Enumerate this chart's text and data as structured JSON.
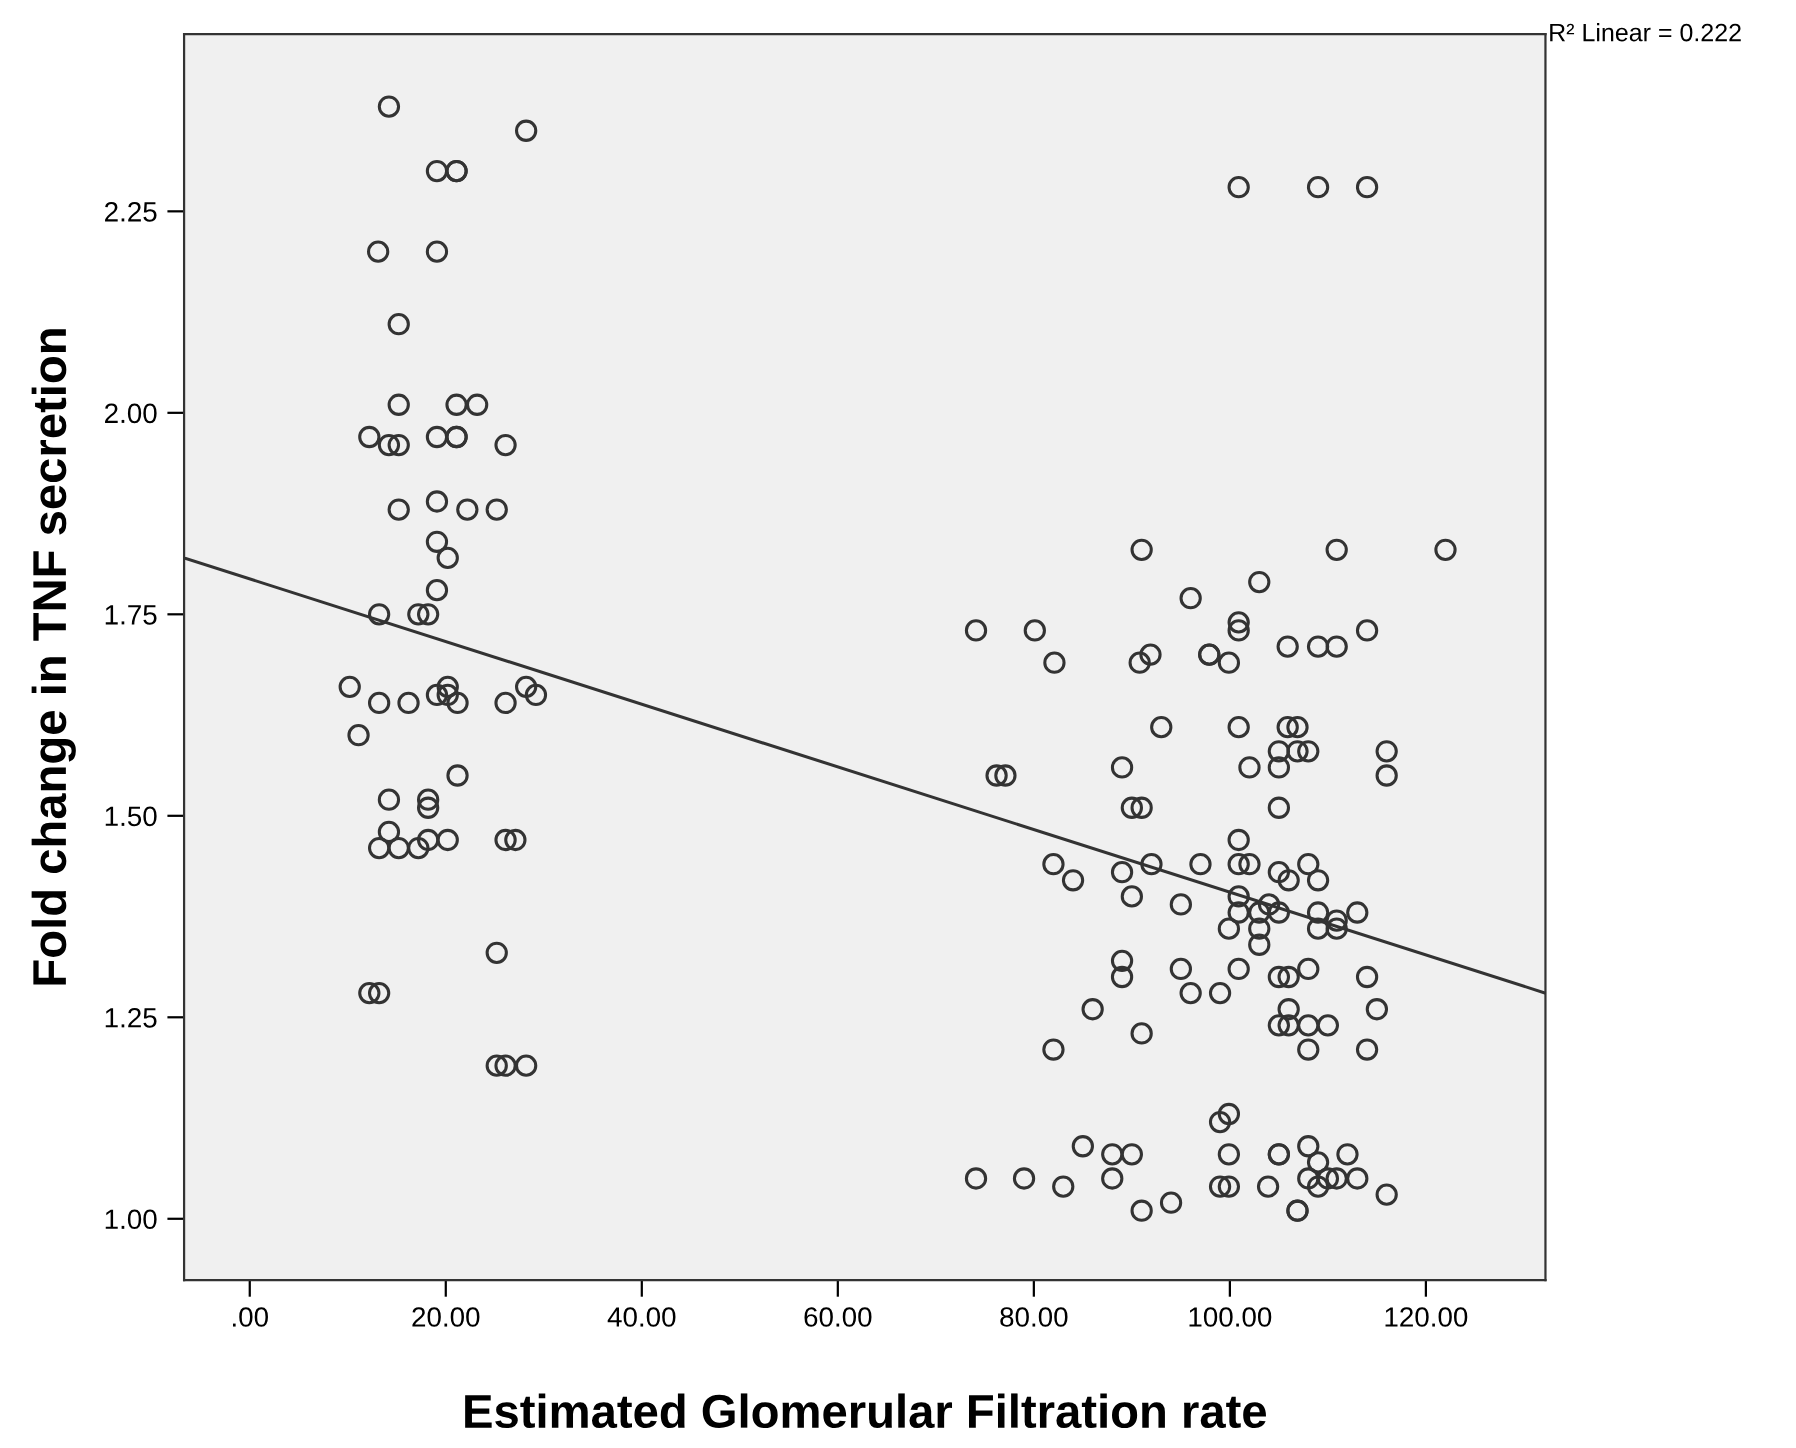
{
  "chart_data": {
    "type": "scatter",
    "xlabel": "Estimated Glomerular Filtration rate",
    "ylabel": "Fold change in TNF secretion",
    "annotations": [
      "R² Linear = 0.222"
    ],
    "xlim": [
      -6.7,
      132.2
    ],
    "ylim": [
      0.924,
      2.47
    ],
    "xticks": [
      {
        "value": 0,
        "label": ".00"
      },
      {
        "value": 20,
        "label": "20.00"
      },
      {
        "value": 40,
        "label": "40.00"
      },
      {
        "value": 60,
        "label": "60.00"
      },
      {
        "value": 80,
        "label": "80.00"
      },
      {
        "value": 100,
        "label": "100.00"
      },
      {
        "value": 120,
        "label": "120.00"
      }
    ],
    "yticks": [
      {
        "value": 1,
        "label": "1.00"
      },
      {
        "value": 1.25,
        "label": "1.25"
      },
      {
        "value": 1.5,
        "label": "1.50"
      },
      {
        "value": 1.75,
        "label": "1.75"
      },
      {
        "value": 2,
        "label": "2.00"
      },
      {
        "value": 2.25,
        "label": "2.25"
      }
    ],
    "grid": false,
    "marker": "circle",
    "series": [
      {
        "type": "scatter",
        "color": "#333333",
        "x": [
          14.2,
          28.2,
          19.1,
          21.1,
          21.1,
          13.1,
          19.1,
          15.2,
          15.2,
          21.1,
          23.2,
          12.2,
          14.2,
          15.2,
          19.1,
          21.1,
          21.1,
          26.1,
          15.2,
          19.1,
          22.2,
          25.2,
          19.1,
          20.2,
          19.1,
          13.2,
          17.2,
          18.2,
          10.2,
          13.2,
          16.2,
          19.1,
          20.2,
          20.2,
          21.2,
          26.1,
          28.2,
          29.2,
          11.1,
          21.2,
          14.2,
          18.2,
          18.2,
          14.2,
          13.2,
          15.2,
          17.2,
          18.2,
          20.2,
          26.1,
          27.1,
          25.2,
          12.2,
          13.2,
          25.2,
          26.1,
          28.2,
          100.9,
          109.0,
          114.0,
          91.0,
          110.9,
          122.0,
          103.0,
          96.0,
          74.1,
          80.1,
          100.9,
          100.9,
          114.0,
          82.1,
          90.8,
          91.9,
          97.9,
          97.9,
          99.9,
          105.9,
          109.0,
          110.9,
          93.0,
          100.9,
          105.9,
          106.9,
          105.0,
          106.9,
          108.0,
          116.0,
          116.0,
          76.2,
          77.1,
          89.0,
          102.0,
          105.0,
          90.0,
          91.0,
          105.0,
          100.9,
          82.0,
          84.0,
          89.0,
          92.0,
          97.0,
          100.9,
          102.0,
          105.0,
          106.0,
          108.0,
          109.0,
          90.0,
          95.0,
          100.9,
          100.9,
          104.0,
          103.0,
          105.0,
          109.0,
          109.0,
          110.9,
          110.9,
          113.0,
          99.9,
          103.0,
          103.0,
          89.0,
          89.0,
          95.0,
          100.9,
          105.0,
          106.0,
          108.0,
          114.0,
          96.0,
          99.0,
          86.0,
          106.0,
          115.0,
          91.0,
          105.0,
          106.0,
          108.0,
          110.0,
          82.0,
          108.0,
          114.0,
          99.9,
          99.0,
          85.0,
          88.0,
          90.0,
          99.9,
          105.0,
          105.0,
          108.0,
          109.0,
          112.0,
          74.1,
          79.0,
          83.0,
          88.0,
          99.0,
          99.9,
          103.9,
          108.0,
          109.0,
          110.0,
          110.9,
          113.0,
          116.0,
          91.0,
          94.0,
          106.9,
          106.9
        ],
        "values": [
          2.38,
          2.35,
          2.3,
          2.3,
          2.3,
          2.2,
          2.2,
          2.11,
          2.01,
          2.01,
          2.01,
          1.97,
          1.96,
          1.96,
          1.97,
          1.97,
          1.97,
          1.96,
          1.88,
          1.89,
          1.88,
          1.88,
          1.84,
          1.82,
          1.78,
          1.75,
          1.75,
          1.75,
          1.66,
          1.64,
          1.64,
          1.65,
          1.66,
          1.65,
          1.64,
          1.64,
          1.66,
          1.65,
          1.6,
          1.55,
          1.52,
          1.52,
          1.51,
          1.48,
          1.46,
          1.46,
          1.46,
          1.47,
          1.47,
          1.47,
          1.47,
          1.33,
          1.28,
          1.28,
          1.19,
          1.19,
          1.19,
          2.28,
          2.28,
          2.28,
          1.83,
          1.83,
          1.83,
          1.79,
          1.77,
          1.73,
          1.73,
          1.74,
          1.73,
          1.73,
          1.69,
          1.69,
          1.7,
          1.7,
          1.7,
          1.69,
          1.71,
          1.71,
          1.71,
          1.61,
          1.61,
          1.61,
          1.61,
          1.58,
          1.58,
          1.58,
          1.58,
          1.55,
          1.55,
          1.55,
          1.56,
          1.56,
          1.56,
          1.51,
          1.51,
          1.51,
          1.47,
          1.44,
          1.42,
          1.43,
          1.44,
          1.44,
          1.44,
          1.44,
          1.43,
          1.42,
          1.44,
          1.42,
          1.4,
          1.39,
          1.4,
          1.38,
          1.39,
          1.38,
          1.38,
          1.38,
          1.36,
          1.37,
          1.36,
          1.38,
          1.36,
          1.36,
          1.34,
          1.32,
          1.3,
          1.31,
          1.31,
          1.3,
          1.3,
          1.31,
          1.3,
          1.28,
          1.28,
          1.26,
          1.26,
          1.26,
          1.23,
          1.24,
          1.24,
          1.24,
          1.24,
          1.21,
          1.21,
          1.21,
          1.13,
          1.12,
          1.09,
          1.08,
          1.08,
          1.08,
          1.08,
          1.08,
          1.09,
          1.07,
          1.08,
          1.05,
          1.05,
          1.04,
          1.05,
          1.04,
          1.04,
          1.04,
          1.05,
          1.04,
          1.05,
          1.05,
          1.05,
          1.03,
          1.01,
          1.02,
          1.01,
          1.01
        ]
      },
      {
        "type": "line",
        "color": "#333333",
        "marker": "none",
        "line_style": "solid",
        "x": [
          -6.7,
          132.2
        ],
        "values": [
          1.82,
          1.28
        ]
      }
    ]
  }
}
